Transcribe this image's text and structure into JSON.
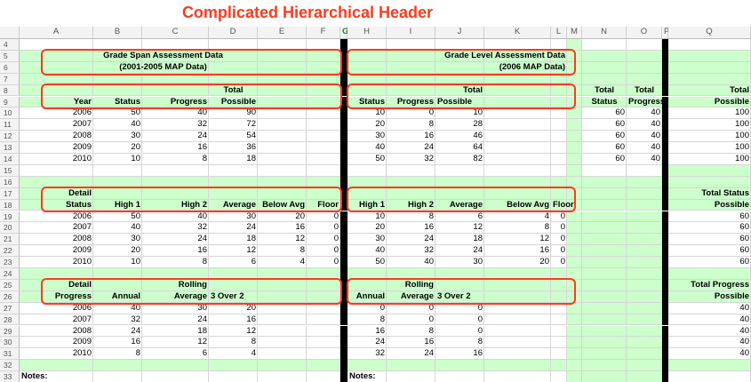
{
  "title": "Complicated Hierarchical Header",
  "columns": [
    "A",
    "B",
    "C",
    "D",
    "E",
    "F",
    "G",
    "H",
    "I",
    "J",
    "K",
    "L",
    "M",
    "N",
    "O",
    "P",
    "Q"
  ],
  "selected_column": "G",
  "rows": [
    4,
    5,
    6,
    7,
    8,
    9,
    10,
    11,
    12,
    13,
    14,
    15,
    16,
    17,
    18,
    19,
    20,
    21,
    22,
    23,
    24,
    25,
    26,
    27,
    28,
    29,
    30,
    31,
    32,
    33
  ],
  "left": {
    "header_line1": "Grade Span Assessment Data",
    "header_line2": "(2001-2005 MAP Data)",
    "total_label": "Total",
    "h9": [
      "Year",
      "Status",
      "Progress",
      "Possible"
    ],
    "block1": [
      [
        "2006",
        "50",
        "40",
        "90"
      ],
      [
        "2007",
        "40",
        "32",
        "72"
      ],
      [
        "2008",
        "30",
        "24",
        "54"
      ],
      [
        "2009",
        "20",
        "16",
        "36"
      ],
      [
        "2010",
        "10",
        "8",
        "18"
      ]
    ],
    "detail_label": "Detail",
    "h18": [
      "Status",
      "High 1",
      "High 2",
      "Average",
      "Below Avg",
      "Floor"
    ],
    "block2": [
      [
        "2006",
        "50",
        "40",
        "30",
        "20",
        "0"
      ],
      [
        "2007",
        "40",
        "32",
        "24",
        "16",
        "0"
      ],
      [
        "2008",
        "30",
        "24",
        "18",
        "12",
        "0"
      ],
      [
        "2009",
        "20",
        "16",
        "12",
        "8",
        "0"
      ],
      [
        "2010",
        "10",
        "8",
        "6",
        "4",
        "0"
      ]
    ],
    "rolling_label": "Rolling",
    "h26": [
      "Progress",
      "Annual",
      "Average",
      "3 Over 2"
    ],
    "block3": [
      [
        "2006",
        "40",
        "30",
        "20"
      ],
      [
        "2007",
        "32",
        "24",
        "16"
      ],
      [
        "2008",
        "24",
        "18",
        "12"
      ],
      [
        "2009",
        "16",
        "12",
        "8"
      ],
      [
        "2010",
        "8",
        "6",
        "4"
      ]
    ],
    "notes_label": "Notes:"
  },
  "right": {
    "header_line1": "Grade Level Assessment Data",
    "header_line2": "(2006 MAP Data)",
    "total_label": "Total",
    "h9": [
      "Status",
      "Progress",
      "Possible"
    ],
    "block1": [
      [
        "10",
        "0",
        "10"
      ],
      [
        "20",
        "8",
        "28"
      ],
      [
        "30",
        "16",
        "46"
      ],
      [
        "40",
        "24",
        "64"
      ],
      [
        "50",
        "32",
        "82"
      ]
    ],
    "h18": [
      "High 1",
      "High 2",
      "Average",
      "Below Avg",
      "Floor"
    ],
    "block2": [
      [
        "10",
        "8",
        "6",
        "4",
        "0"
      ],
      [
        "20",
        "16",
        "12",
        "8",
        "0"
      ],
      [
        "30",
        "24",
        "18",
        "12",
        "0"
      ],
      [
        "40",
        "32",
        "24",
        "16",
        "0"
      ],
      [
        "50",
        "40",
        "30",
        "20",
        "0"
      ]
    ],
    "rolling_label": "Rolling",
    "h26": [
      "Annual",
      "Average",
      "3 Over 2"
    ],
    "block3": [
      [
        "0",
        "0",
        "0"
      ],
      [
        "8",
        "0",
        "0"
      ],
      [
        "16",
        "8",
        "0"
      ],
      [
        "24",
        "16",
        "8"
      ],
      [
        "32",
        "24",
        "16"
      ]
    ],
    "notes_label": "Notes:"
  },
  "summary": {
    "total_label": "Total",
    "status_label": "Status",
    "progress_label": "Progress",
    "block1": [
      [
        "60",
        "40"
      ],
      [
        "60",
        "40"
      ],
      [
        "60",
        "40"
      ],
      [
        "60",
        "40"
      ],
      [
        "60",
        "40"
      ]
    ]
  },
  "q_column": {
    "h8": "Total",
    "h9": "Possible",
    "block1": [
      "100",
      "100",
      "100",
      "100",
      "100"
    ],
    "h17": "Total Status",
    "h18": "Possible",
    "block2": [
      "60",
      "60",
      "60",
      "60",
      "60"
    ],
    "h25": "Total Progress",
    "h26": "Possible",
    "block3": [
      "40",
      "40",
      "40",
      "40",
      "40"
    ]
  },
  "colors": {
    "highlight": "#ff3a1f",
    "band": "#ccffcc",
    "divider": "#000000"
  }
}
